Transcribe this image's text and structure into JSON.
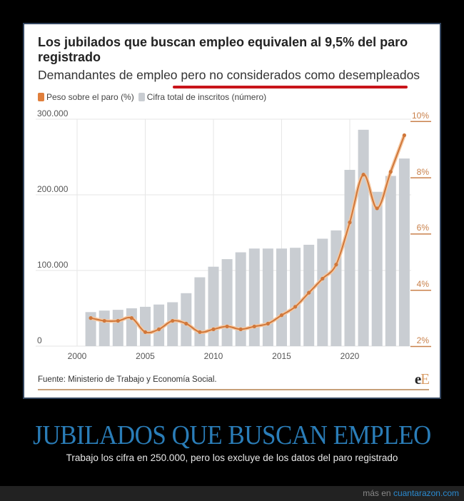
{
  "card": {
    "title": "Los jubilados que buscan empleo equivalen al 9,5% del paro registrado",
    "subtitle": "Demandantes de empleo pero no considerados como desempleados",
    "legend": [
      {
        "label": "Peso sobre el paro (%)",
        "color": "#e07f3c"
      },
      {
        "label": "Cifra total de inscritos (número)",
        "color": "#c9cdd2"
      }
    ],
    "source": "Fuente: Ministerio de Trabajo y Economía Social.",
    "logo_a": "e",
    "logo_b": "E"
  },
  "meme": {
    "headline": "JUBILADOS QUE BUSCAN EMPLEO",
    "caption": "Trabajo los cifra en 250.000, pero los excluye de los datos del paro registrado",
    "more_prefix": "más en ",
    "more_link": "cuantarazon.com"
  },
  "colors": {
    "bar": "#c9cdd2",
    "line": "#d0773a",
    "line_glow": "#f5c9a3",
    "highlight_underline": "#c9141a",
    "grid": "#e6e6e6",
    "right_axis": "#c9814b"
  },
  "chart_data": {
    "type": "bar+line",
    "title": "Los jubilados que buscan empleo equivalen al 9,5% del paro registrado",
    "subtitle": "Demandantes de empleo pero no considerados como desempleados",
    "xlabel": "",
    "ylabel_left": "Cifra total de inscritos (número)",
    "ylabel_right": "Peso sobre el paro (%)",
    "x_ticks": [
      "2000",
      "2005",
      "2010",
      "2015",
      "2020"
    ],
    "y_left_ticks": [
      "0",
      "100.000",
      "200.000",
      "300.000"
    ],
    "y_right_ticks": [
      "2%",
      "4%",
      "6%",
      "8%",
      "10%"
    ],
    "ylim_left": [
      0,
      300000
    ],
    "ylim_right": [
      2,
      10
    ],
    "grid": true,
    "legend_position": "top-left",
    "categories": [
      2001,
      2002,
      2003,
      2004,
      2005,
      2006,
      2007,
      2008,
      2009,
      2010,
      2011,
      2012,
      2013,
      2014,
      2015,
      2016,
      2017,
      2018,
      2019,
      2020,
      2021,
      2022,
      2023,
      2024
    ],
    "series": [
      {
        "name": "Cifra total de inscritos (número)",
        "type": "bar",
        "axis": "left",
        "values": [
          45000,
          47000,
          48000,
          50000,
          52000,
          55000,
          58000,
          70000,
          91000,
          105000,
          115000,
          124000,
          129000,
          129000,
          129000,
          130000,
          134000,
          142000,
          153000,
          233000,
          286000,
          204000,
          225000,
          248000
        ]
      },
      {
        "name": "Peso sobre el paro (%)",
        "type": "line",
        "axis": "right",
        "values": [
          3.0,
          2.9,
          2.9,
          3.0,
          2.5,
          2.6,
          2.9,
          2.8,
          2.5,
          2.6,
          2.7,
          2.6,
          2.7,
          2.8,
          3.1,
          3.4,
          3.9,
          4.4,
          4.9,
          6.4,
          8.1,
          6.9,
          8.2,
          9.5
        ]
      }
    ],
    "annotations": [
      "9,5% (2024)"
    ]
  }
}
